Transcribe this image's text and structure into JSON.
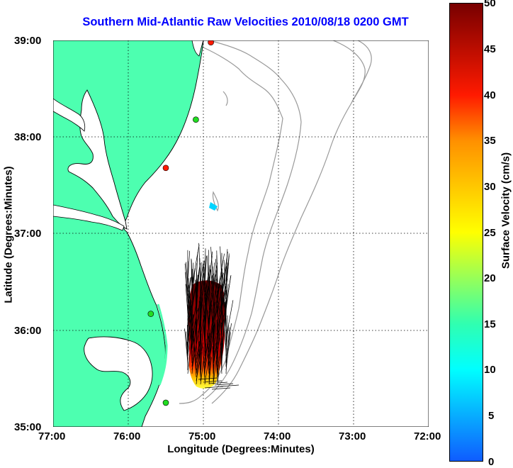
{
  "title": "Southern Mid-Atlantic Raw Velocities 2010/08/18 0200 GMT",
  "x_axis": {
    "label": "Longitude (Degrees:Minutes)",
    "ticks": [
      "77:00",
      "76:00",
      "75:00",
      "74:00",
      "73:00",
      "72:00"
    ]
  },
  "y_axis": {
    "label": "Latitude (Degrees:Minutes)",
    "ticks": [
      "39:00",
      "38:00",
      "37:00",
      "36:00",
      "35:00"
    ]
  },
  "colorbar": {
    "label": "Surface Velocity (cm/s)",
    "ticks": [
      "50",
      "45",
      "40",
      "35",
      "30",
      "25",
      "20",
      "15",
      "10",
      "5",
      "0"
    ],
    "range": [
      0,
      50
    ]
  },
  "colors": {
    "land": "#4dffb0",
    "coastline": "#000000",
    "bathymetry": "#999999",
    "title": "#0000ff",
    "site_green": "#22dd22",
    "site_red": "#ff1a00"
  },
  "sites": [
    {
      "lon": -74.9,
      "lat": 38.98,
      "color": "red"
    },
    {
      "lon": -75.1,
      "lat": 38.18,
      "color": "green"
    },
    {
      "lon": -75.5,
      "lat": 37.68,
      "color": "red"
    },
    {
      "lon": -75.7,
      "lat": 36.17,
      "color": "green"
    },
    {
      "lon": -75.5,
      "lat": 35.25,
      "color": "green"
    }
  ]
}
